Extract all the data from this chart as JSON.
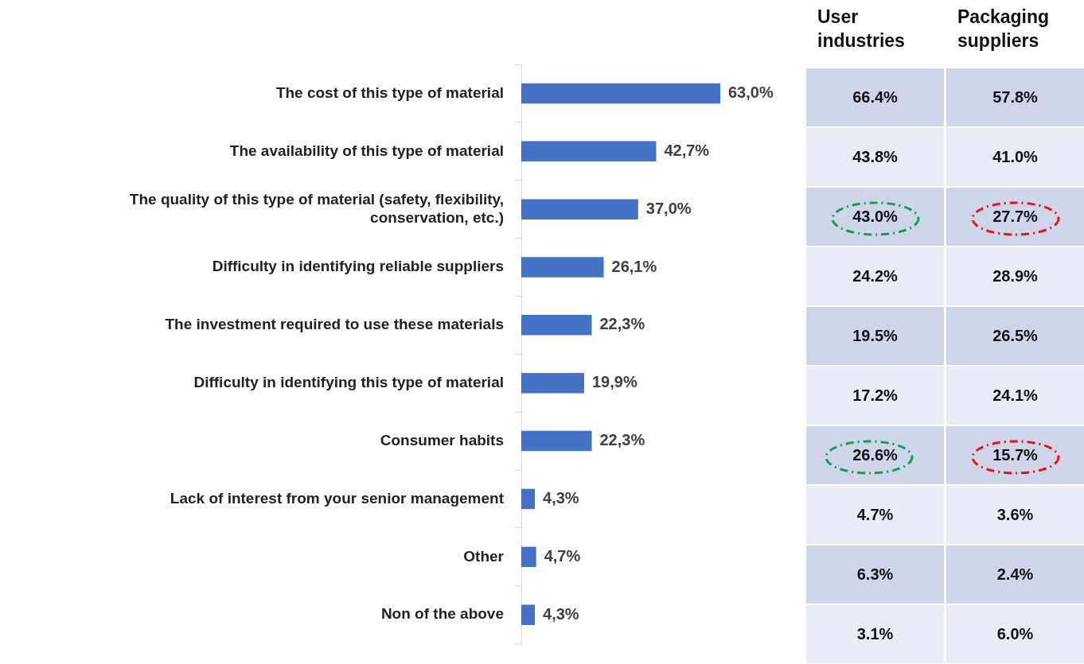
{
  "chart_data": [
    {
      "type": "bar",
      "orientation": "horizontal",
      "categories": [
        "The cost of this type of material",
        "The availability of this type of material",
        "The quality of this type of material (safety, flexibility, conservation, etc.)",
        "Difficulty in identifying reliable suppliers",
        "The investment required to use these materials",
        "Difficulty in identifying this type of material",
        "Consumer habits",
        "Lack of interest from your senior management",
        "Other",
        "Non of the above"
      ],
      "values": [
        63.0,
        42.7,
        37.0,
        26.1,
        22.3,
        19.9,
        22.3,
        4.3,
        4.7,
        4.3
      ],
      "value_labels": [
        "63,0%",
        "42,7%",
        "37,0%",
        "26,1%",
        "22,3%",
        "19,9%",
        "22,3%",
        "4,3%",
        "4,7%",
        "4,3%"
      ],
      "color": "#4472c4",
      "tick_labels": "y",
      "legend": false
    },
    {
      "type": "heatmap",
      "categories": [
        "User industries",
        "Packaging suppliers"
      ],
      "y_categories": [
        null,
        null,
        null,
        null,
        null,
        null,
        null,
        null,
        null,
        null
      ],
      "cells": [
        [
          66.4,
          57.8
        ],
        [
          43.8,
          41.0
        ],
        [
          43.0,
          27.7
        ],
        [
          24.2,
          28.9
        ],
        [
          19.5,
          26.5
        ],
        [
          17.2,
          24.1
        ],
        [
          26.6,
          15.7
        ],
        [
          4.7,
          3.6
        ],
        [
          6.3,
          2.4
        ],
        [
          3.1,
          6.0
        ]
      ],
      "cell_labels": [
        [
          "66.4%",
          "57.8%"
        ],
        [
          "43.8%",
          "41.0%"
        ],
        [
          "43.0%",
          "27.7%"
        ],
        [
          "24.2%",
          "28.9%"
        ],
        [
          "19.5%",
          "26.5%"
        ],
        [
          "17.2%",
          "24.1%"
        ],
        [
          "26.6%",
          "15.7%"
        ],
        [
          "4.7%",
          "3.6%"
        ],
        [
          "6.3%",
          "2.4%"
        ],
        [
          "3.1%",
          "6.0%"
        ]
      ],
      "colors": [
        "#cfd5ea",
        "#e9ebf5"
      ]
    }
  ]
}
